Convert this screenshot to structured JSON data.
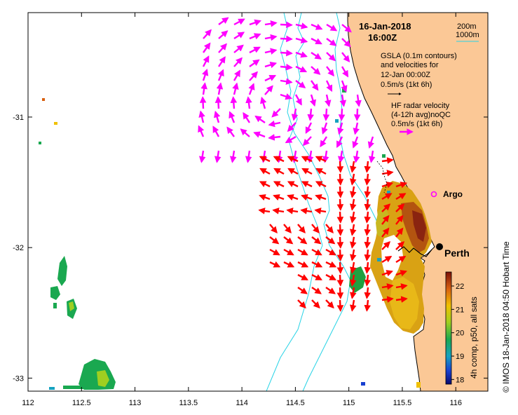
{
  "header": {
    "date": "16-Jan-2018",
    "time": "16:00Z"
  },
  "bathymetry_legend": {
    "line1": "200m",
    "line2": "1000m",
    "line_color": "#27d3e6"
  },
  "gsla_legend": {
    "line1": "GSLA (0.1m contours)",
    "line2": "and velocities for",
    "line3": "12-Jan 00:00Z",
    "scale": "0.5m/s (1kt 6h)",
    "arrow_color": "#000000"
  },
  "hf_legend": {
    "line1": "HF radar velocity",
    "line2": "(4-12h avg)noQC",
    "scale": "0.5m/s (1kt 6h)",
    "arrow_color": "#ff00ff"
  },
  "places": {
    "argo": "Argo",
    "perth": "Perth"
  },
  "colorbar": {
    "label": "4h comp, p50, all sats",
    "ticks": [
      "22",
      "21",
      "20",
      "19",
      "18"
    ]
  },
  "credit": "© IMOS 18-Jan-2018 04:50 Hobart Time",
  "colors": {
    "land": "#fbc896",
    "coast": "#000000",
    "hf_arrow": "#ff00ff",
    "model_arrow": "#ff0000"
  },
  "chart_data": {
    "type": "map",
    "x_ticks": [
      "112",
      "112.5",
      "113",
      "113.5",
      "114",
      "114.5",
      "115",
      "115.5",
      "116"
    ],
    "y_ticks": [
      "-31",
      "-32",
      "-33"
    ],
    "x_range": [
      112,
      116.3
    ],
    "y_range": [
      -33.1,
      -30.2
    ],
    "x_tick_values": [
      112,
      112.5,
      113,
      113.5,
      114,
      114.5,
      115,
      115.5,
      116
    ],
    "y_tick_values": [
      -31,
      -32,
      -33
    ],
    "colorbar_range": [
      17.8,
      22.6
    ],
    "colorbar_tick_values": [
      22,
      21,
      20,
      19,
      18
    ]
  }
}
